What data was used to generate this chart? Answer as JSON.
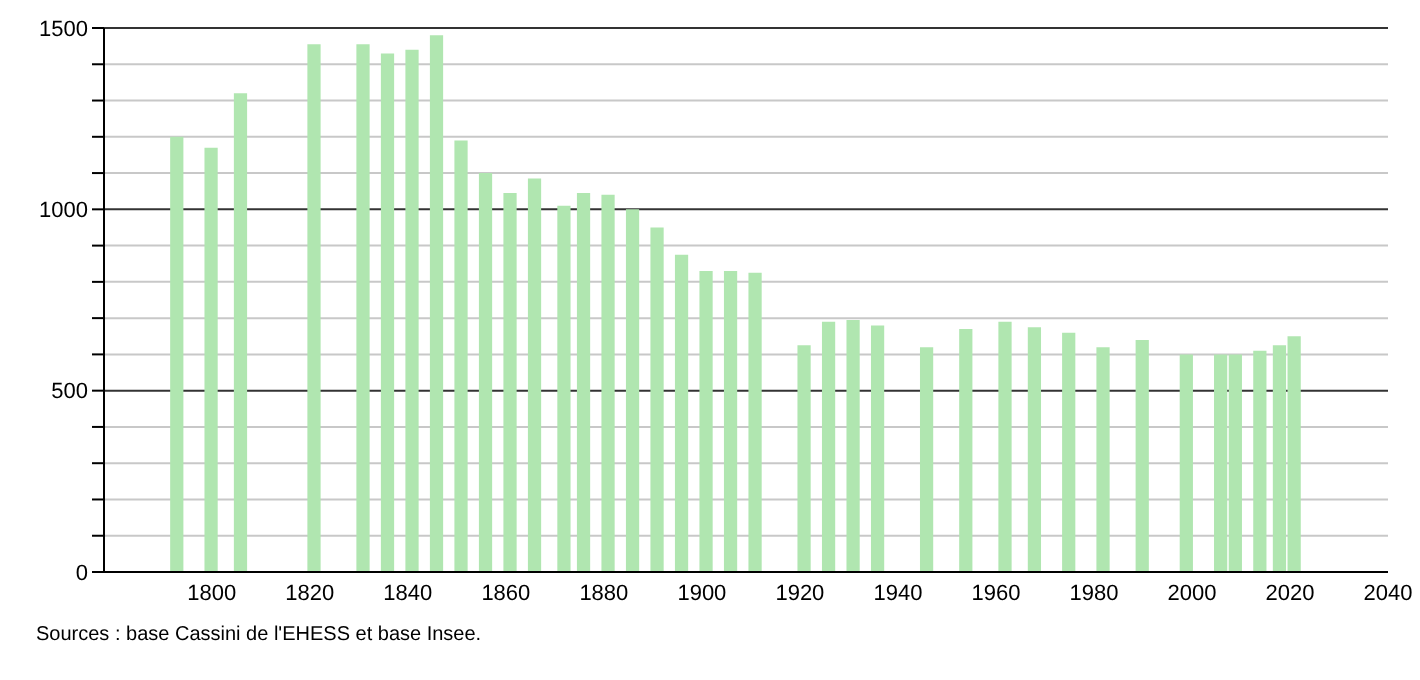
{
  "chart_data": {
    "type": "bar",
    "x": [
      1793,
      1800,
      1806,
      1821,
      1831,
      1836,
      1841,
      1846,
      1851,
      1856,
      1861,
      1866,
      1872,
      1876,
      1881,
      1886,
      1891,
      1896,
      1901,
      1906,
      1911,
      1921,
      1926,
      1931,
      1936,
      1946,
      1954,
      1962,
      1968,
      1975,
      1982,
      1990,
      1999,
      2006,
      2009,
      2014,
      2018,
      2021
    ],
    "values": [
      1200,
      1170,
      1320,
      1455,
      1455,
      1430,
      1440,
      1480,
      1190,
      1100,
      1045,
      1085,
      1010,
      1045,
      1040,
      1000,
      950,
      875,
      830,
      830,
      825,
      625,
      690,
      695,
      680,
      620,
      670,
      690,
      675,
      660,
      620,
      640,
      600,
      600,
      600,
      610,
      625,
      650
    ],
    "color": "#b0e6b0",
    "xlim": [
      1778,
      2040
    ],
    "xticks": [
      1800,
      1820,
      1840,
      1860,
      1880,
      1900,
      1920,
      1940,
      1960,
      1980,
      2000,
      2020,
      2040
    ],
    "ylim": [
      0,
      1500
    ],
    "yticks": [
      0,
      {
        "value": 100,
        "label": null
      },
      {
        "value": 200,
        "label": null
      },
      {
        "value": 300,
        "label": null
      },
      {
        "value": 400,
        "label": null
      },
      500,
      {
        "value": 600,
        "label": null
      },
      {
        "value": 700,
        "label": null
      },
      {
        "value": 800,
        "label": null
      },
      {
        "value": 900,
        "label": null
      },
      1000,
      {
        "value": 1100,
        "label": null
      },
      {
        "value": 1200,
        "label": null
      },
      {
        "value": 1300,
        "label": null
      },
      {
        "value": 1400,
        "label": null
      },
      1500
    ],
    "grid": "y",
    "annotations": [
      "Sources : base Cassini de l'EHESS et base Insee."
    ]
  }
}
